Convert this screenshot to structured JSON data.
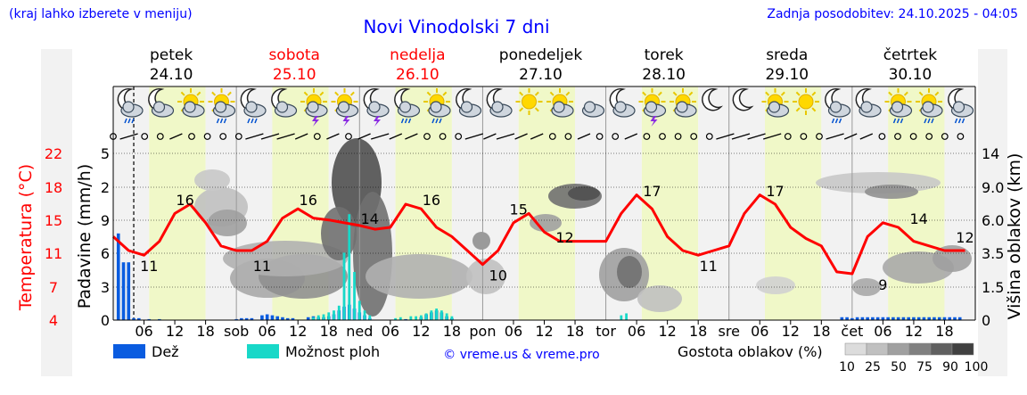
{
  "header": {
    "left_note": "(kraj lahko izberete v meniju)",
    "title": "Novi Vinodolski 7 dni",
    "updated": "Zadnja posodobitev: 24.10.2025 - 04:05"
  },
  "days": [
    {
      "name": "petek",
      "date": "24.10",
      "weekend": false
    },
    {
      "name": "sobota",
      "date": "25.10",
      "weekend": true
    },
    {
      "name": "nedelja",
      "date": "26.10",
      "weekend": true
    },
    {
      "name": "ponedeljek",
      "date": "27.10",
      "weekend": false
    },
    {
      "name": "torek",
      "date": "28.10",
      "weekend": false
    },
    {
      "name": "sreda",
      "date": "29.10",
      "weekend": false
    },
    {
      "name": "četrtek",
      "date": "30.10",
      "weekend": false
    }
  ],
  "colors": {
    "day_band": "#f0f8c8",
    "night_band": "#f2f2f2",
    "temperature": "#ff0000",
    "rain": "#0a5ce0",
    "showers": "#18d8c8",
    "title": "#0000ff",
    "weekend": "#ff0000"
  },
  "icons": [
    "moon-rain",
    "cloud-moon",
    "sun-cloud",
    "sun-rain",
    "moon-rain",
    "cloud-moon",
    "sun-storm",
    "sun-storm",
    "moon-storm",
    "moon-rain",
    "sun-rain",
    "moon-cloud",
    "cloud-moon",
    "sun",
    "sun-cloud",
    "cloud",
    "cloud-moon",
    "sun-storm",
    "sun-cloud",
    "moon",
    "moon",
    "sun-cloud",
    "sun",
    "moon-rain",
    "cloud-moon",
    "sun-rain",
    "sun-rain",
    "moon-rain"
  ],
  "chart_data": {
    "type": "line",
    "x_start": "2025-10-24T00:00",
    "x_end": "2025-10-31T00:00",
    "x_tick_labels": [
      "06",
      "12",
      "18",
      "sob",
      "06",
      "12",
      "18",
      "ned",
      "06",
      "12",
      "18",
      "pon",
      "06",
      "12",
      "18",
      "tor",
      "06",
      "12",
      "18",
      "sre",
      "06",
      "12",
      "18",
      "čet",
      "06",
      "12",
      "18"
    ],
    "left_axes": {
      "temperature_label": "Temperatura (°C)",
      "temperature_ticks": [
        "4",
        "7",
        "11",
        "15",
        "18",
        "22"
      ],
      "rain_label": "Padavine (mm/h)",
      "rain_ticks": [
        "0",
        "3",
        "6",
        "9",
        "2",
        "5"
      ]
    },
    "right_axis": {
      "label": "Višina oblakov (km)",
      "ticks": [
        "0",
        "1.5",
        "3.5",
        "6.0",
        "9.0",
        "14"
      ]
    },
    "temperature_series": {
      "name": "Temperatura",
      "x_hours": [
        0,
        3,
        6,
        9,
        12,
        15,
        18,
        21,
        24,
        27,
        30,
        33,
        36,
        39,
        42,
        45,
        48,
        51,
        54,
        57,
        60,
        63,
        66,
        69,
        72,
        75,
        78,
        81,
        84,
        87,
        90,
        93,
        96,
        99,
        102,
        105,
        108,
        111,
        114,
        117,
        120,
        123,
        126,
        129,
        132,
        135,
        138,
        141,
        144,
        147,
        150,
        153,
        156,
        159,
        162,
        165,
        166
      ],
      "values": [
        13,
        11.5,
        11,
        12.5,
        15.5,
        16.5,
        14.5,
        12,
        11.5,
        11.5,
        12.5,
        15,
        16,
        15,
        14.8,
        14.5,
        14.2,
        13.8,
        14,
        16.5,
        16,
        14,
        13,
        11.5,
        10,
        11.5,
        14.5,
        15.5,
        13.5,
        12.5,
        12.5,
        12.5,
        12.5,
        15.5,
        17.5,
        16,
        13,
        11.5,
        11,
        11.5,
        12,
        15.5,
        17.5,
        16.5,
        14,
        12.8,
        12,
        9.2,
        9,
        13,
        14.5,
        14,
        12.5,
        12,
        11.5,
        11.5,
        11.5
      ]
    },
    "temperature_labels": [
      {
        "hour": 7,
        "value": 11
      },
      {
        "hour": 14,
        "value": 16
      },
      {
        "hour": 29,
        "value": 11
      },
      {
        "hour": 38,
        "value": 16
      },
      {
        "hour": 50,
        "value": 14
      },
      {
        "hour": 62,
        "value": 16
      },
      {
        "hour": 75,
        "value": 10
      },
      {
        "hour": 79,
        "value": 15
      },
      {
        "hour": 88,
        "value": 12
      },
      {
        "hour": 105,
        "value": 17
      },
      {
        "hour": 116,
        "value": 11
      },
      {
        "hour": 129,
        "value": 17
      },
      {
        "hour": 150,
        "value": 9
      },
      {
        "hour": 157,
        "value": 14
      },
      {
        "hour": 166,
        "value": 12
      }
    ],
    "precipitation": {
      "rain_name": "Dež",
      "showers_name": "Možnost ploh",
      "rain_bars": [
        [
          1,
          9
        ],
        [
          2,
          6
        ],
        [
          3,
          6
        ],
        [
          4,
          0.2
        ],
        [
          5,
          0.2
        ],
        [
          7,
          0.1
        ],
        [
          9,
          0.1
        ],
        [
          24,
          0.1
        ],
        [
          25,
          0.2
        ],
        [
          26,
          0.2
        ],
        [
          27,
          0.2
        ],
        [
          29,
          0.5
        ],
        [
          30,
          0.6
        ],
        [
          31,
          0.5
        ],
        [
          32,
          0.4
        ],
        [
          33,
          0.3
        ],
        [
          34,
          0.2
        ],
        [
          35,
          0.2
        ],
        [
          38,
          0.3
        ],
        [
          39,
          0.4
        ],
        [
          40,
          0.3
        ],
        [
          41,
          0.3
        ],
        [
          42,
          0.4
        ],
        [
          43,
          0.6
        ],
        [
          44,
          1
        ],
        [
          45,
          1.4
        ],
        [
          46,
          1.6
        ],
        [
          47,
          1.2
        ],
        [
          48,
          0.8
        ],
        [
          49,
          0.5
        ],
        [
          50,
          0.2
        ],
        [
          57,
          0.1
        ],
        [
          60,
          0.3
        ],
        [
          61,
          0.6
        ],
        [
          62,
          0.8
        ],
        [
          63,
          1
        ],
        [
          64,
          0.8
        ],
        [
          65,
          0.4
        ],
        [
          66,
          0.2
        ],
        [
          142,
          0.3
        ],
        [
          143,
          0.3
        ],
        [
          144,
          0.2
        ],
        [
          145,
          0.3
        ],
        [
          146,
          0.3
        ],
        [
          147,
          0.3
        ],
        [
          148,
          0.3
        ],
        [
          149,
          0.3
        ],
        [
          150,
          0.3
        ],
        [
          151,
          0.3
        ],
        [
          152,
          0.3
        ],
        [
          153,
          0.3
        ],
        [
          154,
          0.3
        ],
        [
          155,
          0.3
        ],
        [
          156,
          0.3
        ],
        [
          157,
          0.3
        ],
        [
          158,
          0.3
        ],
        [
          159,
          0.3
        ],
        [
          160,
          0.3
        ],
        [
          161,
          0.3
        ],
        [
          162,
          0.3
        ],
        [
          163,
          0.3
        ],
        [
          164,
          0.3
        ],
        [
          165,
          0.3
        ]
      ],
      "shower_bars": [
        [
          39,
          0.3
        ],
        [
          40,
          0.5
        ],
        [
          41,
          0.6
        ],
        [
          42,
          0.8
        ],
        [
          43,
          1
        ],
        [
          44,
          1.5
        ],
        [
          45,
          7
        ],
        [
          46,
          11
        ],
        [
          47,
          5
        ],
        [
          48,
          2
        ],
        [
          49,
          1
        ],
        [
          50,
          0.5
        ],
        [
          55,
          0.2
        ],
        [
          56,
          0.3
        ],
        [
          58,
          0.4
        ],
        [
          59,
          0.4
        ],
        [
          60,
          0.5
        ],
        [
          61,
          0.7
        ],
        [
          62,
          1
        ],
        [
          63,
          1.2
        ],
        [
          64,
          1
        ],
        [
          65,
          0.7
        ],
        [
          66,
          0.4
        ],
        [
          99,
          0.5
        ],
        [
          100,
          0.7
        ]
      ]
    },
    "wind_marks": [
      "calm",
      "strong",
      "calm",
      "calm",
      "light",
      "calm",
      "calm",
      "calm",
      "calm",
      "strong",
      "strong",
      "strong",
      "light",
      "calm",
      "light",
      "calm",
      "light",
      "strong",
      "light",
      "light",
      "calm",
      "calm",
      "calm",
      "strong",
      "light",
      "strong",
      "light",
      "light",
      "calm",
      "calm",
      "light",
      "calm",
      "calm",
      "light",
      "calm",
      "calm",
      "calm",
      "calm",
      "calm",
      "strong",
      "strong",
      "strong",
      "strong",
      "calm",
      "calm",
      "calm",
      "strong",
      "light",
      "light",
      "calm",
      "calm",
      "calm",
      "calm",
      "calm",
      "calm"
    ],
    "grid": true
  },
  "legend": {
    "rain": "Dež",
    "showers": "Možnost ploh",
    "credit": "© vreme.us & vreme.pro",
    "cloud_title": "Gostota oblakov (%)",
    "cloud_levels": [
      "10",
      "25",
      "50",
      "75",
      "90",
      "100"
    ],
    "cloud_colors": [
      "#dcdcdc",
      "#c0c0c0",
      "#a0a0a0",
      "#808080",
      "#606060",
      "#404040"
    ]
  }
}
